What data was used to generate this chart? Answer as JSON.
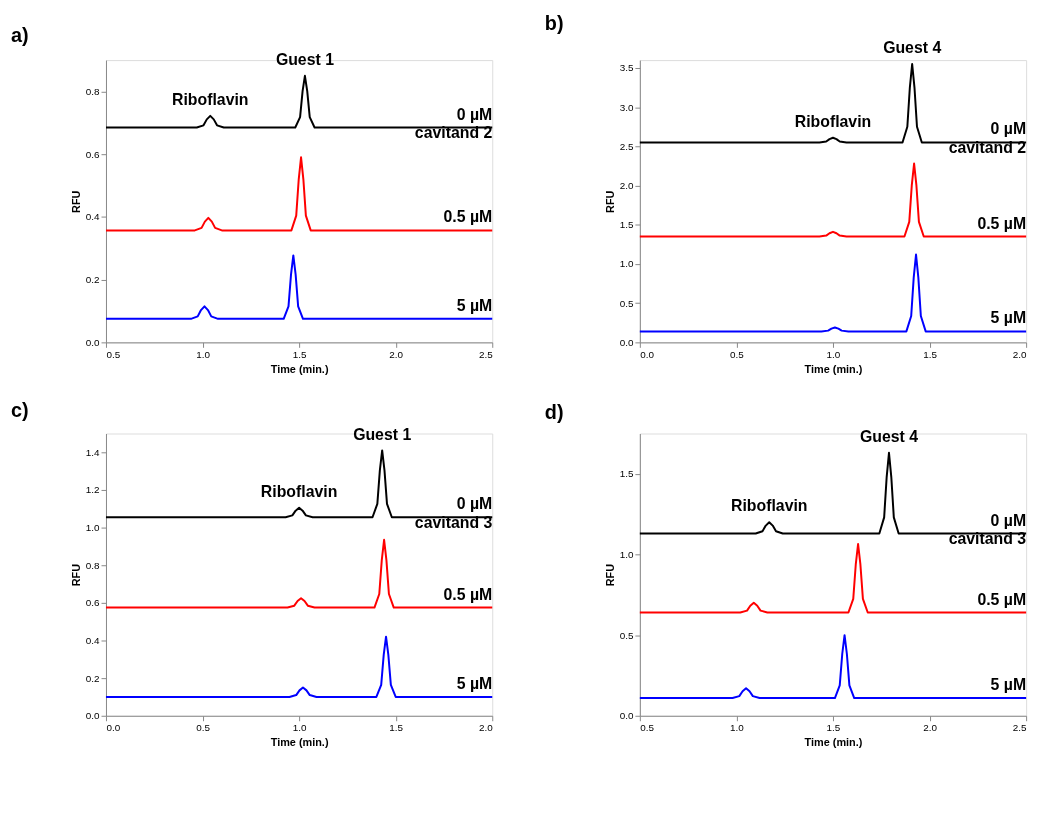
{
  "chart_data": [
    {
      "type": "line",
      "title": "a)",
      "xlabel": "Time (min.)",
      "ylabel": "RFU",
      "xlim": [
        0.5,
        2.5
      ],
      "ylim": [
        0,
        0.9
      ],
      "xticks": [
        0.5,
        {
          "value": 1,
          "label": "1.0"
        },
        1.5,
        {
          "value": 2,
          "label": "2.0"
        },
        2.5
      ],
      "yticks": [
        {
          "value": 0,
          "label": "0.0"
        },
        0.2,
        0.4,
        0.6,
        0.8
      ],
      "annotations": [
        {
          "text": "Guest 1",
          "x": 1.53,
          "y": 0.85
        },
        {
          "text": "Riboflavin",
          "x": 1.04,
          "y": 0.722
        }
      ],
      "series": [
        {
          "name": "0 µM cavitand 2",
          "color": "#000000",
          "x": [
            0.5,
            0.97,
            1.005,
            1.022,
            1.04,
            1.058,
            1.075,
            1.11,
            1.48,
            1.505,
            1.518,
            1.53,
            1.542,
            1.555,
            1.58,
            2.5
          ],
          "values": [
            0.685,
            0.685,
            0.692,
            0.711,
            0.722,
            0.711,
            0.692,
            0.685,
            0.685,
            0.718,
            0.801,
            0.85,
            0.801,
            0.718,
            0.685,
            0.685
          ]
        },
        {
          "name": "0.5 µM",
          "color": "#ff0000",
          "x": [
            0.5,
            0.96,
            0.995,
            1.012,
            1.03,
            1.048,
            1.065,
            1.1,
            1.46,
            1.485,
            1.498,
            1.51,
            1.522,
            1.535,
            1.56,
            2.5
          ],
          "values": [
            0.357,
            0.357,
            0.365,
            0.385,
            0.397,
            0.385,
            0.365,
            0.357,
            0.357,
            0.404,
            0.52,
            0.59,
            0.52,
            0.404,
            0.357,
            0.357
          ]
        },
        {
          "name": "5 µM",
          "color": "#0000ff",
          "x": [
            0.5,
            0.94,
            0.975,
            0.992,
            1.01,
            1.028,
            1.045,
            1.08,
            1.42,
            1.445,
            1.458,
            1.47,
            1.482,
            1.495,
            1.52,
            2.5
          ],
          "values": [
            0.075,
            0.075,
            0.083,
            0.103,
            0.115,
            0.103,
            0.083,
            0.075,
            0.075,
            0.115,
            0.216,
            0.277,
            0.216,
            0.115,
            0.075,
            0.075
          ]
        }
      ]
    },
    {
      "type": "line",
      "title": "b)",
      "xlabel": "Time (min.)",
      "ylabel": "RFU",
      "xlim": [
        0,
        2
      ],
      "ylim": [
        0,
        3.6
      ],
      "xticks": [
        {
          "value": 0,
          "label": "0.0"
        },
        0.5,
        {
          "value": 1,
          "label": "1.0"
        },
        1.5,
        {
          "value": 2,
          "label": "2.0"
        }
      ],
      "yticks": [
        {
          "value": 0,
          "label": "0.0"
        },
        0.5,
        {
          "value": 1,
          "label": "1.0"
        },
        1.5,
        {
          "value": 2,
          "label": "2.0"
        },
        2.5,
        {
          "value": 3,
          "label": "3.0"
        },
        3.5
      ],
      "annotations": [
        {
          "text": "Guest 4",
          "x": 1.41,
          "y": 3.55
        },
        {
          "text": "Riboflavin",
          "x": 1.0,
          "y": 2.61
        }
      ],
      "series": [
        {
          "name": "0 µM cavitand 2",
          "color": "#000000",
          "x": [
            0,
            0.93,
            0.965,
            0.982,
            1.0,
            1.018,
            1.035,
            1.07,
            1.36,
            1.385,
            1.398,
            1.41,
            1.422,
            1.435,
            1.46,
            2.0
          ],
          "values": [
            2.55,
            2.55,
            2.562,
            2.592,
            2.61,
            2.592,
            2.562,
            2.55,
            2.55,
            2.75,
            3.25,
            3.55,
            3.25,
            2.75,
            2.55,
            2.55
          ]
        },
        {
          "name": "0.5 µM",
          "color": "#ff0000",
          "x": [
            0,
            0.93,
            0.965,
            0.982,
            1.0,
            1.018,
            1.035,
            1.07,
            1.37,
            1.395,
            1.408,
            1.42,
            1.432,
            1.445,
            1.47,
            2.0
          ],
          "values": [
            1.35,
            1.35,
            1.362,
            1.392,
            1.41,
            1.392,
            1.362,
            1.35,
            1.35,
            1.536,
            2.001,
            2.28,
            2.001,
            1.536,
            1.35,
            1.35
          ]
        },
        {
          "name": "5 µM",
          "color": "#0000ff",
          "x": [
            0,
            0.94,
            0.975,
            0.992,
            1.01,
            1.028,
            1.045,
            1.08,
            1.38,
            1.405,
            1.418,
            1.43,
            1.442,
            1.455,
            1.48,
            2.0
          ],
          "values": [
            0.14,
            0.14,
            0.15,
            0.175,
            0.19,
            0.175,
            0.15,
            0.14,
            0.14,
            0.336,
            0.826,
            1.12,
            0.826,
            0.336,
            0.14,
            0.14
          ]
        }
      ]
    },
    {
      "type": "line",
      "title": "c)",
      "xlabel": "Time (min.)",
      "ylabel": "RFU",
      "xlim": [
        0,
        2
      ],
      "ylim": [
        0,
        1.5
      ],
      "xticks": [
        {
          "value": 0,
          "label": "0.0"
        },
        0.5,
        {
          "value": 1,
          "label": "1.0"
        },
        1.5,
        {
          "value": 2,
          "label": "2.0"
        }
      ],
      "yticks": [
        {
          "value": 0,
          "label": "0.0"
        },
        0.2,
        0.4,
        0.6,
        0.8,
        {
          "value": 1,
          "label": "1.0"
        },
        1.2,
        1.4
      ],
      "annotations": [
        {
          "text": "Guest 1",
          "x": 1.43,
          "y": 1.41
        },
        {
          "text": "Riboflavin",
          "x": 1.0,
          "y": 1.105
        }
      ],
      "series": [
        {
          "name": "0 µM cavitand 3",
          "color": "#000000",
          "x": [
            0,
            0.93,
            0.965,
            0.982,
            1.0,
            1.018,
            1.035,
            1.07,
            1.38,
            1.405,
            1.418,
            1.43,
            1.442,
            1.455,
            1.48,
            2.0
          ],
          "values": [
            1.055,
            1.055,
            1.065,
            1.09,
            1.105,
            1.09,
            1.065,
            1.055,
            1.055,
            1.126,
            1.304,
            1.41,
            1.304,
            1.126,
            1.055,
            1.055
          ]
        },
        {
          "name": "0.5 µM",
          "color": "#ff0000",
          "x": [
            0,
            0.94,
            0.975,
            0.992,
            1.01,
            1.028,
            1.045,
            1.08,
            1.39,
            1.415,
            1.428,
            1.44,
            1.452,
            1.465,
            1.49,
            2.0
          ],
          "values": [
            0.575,
            0.575,
            0.585,
            0.61,
            0.625,
            0.61,
            0.585,
            0.575,
            0.575,
            0.647,
            0.827,
            0.935,
            0.827,
            0.647,
            0.575,
            0.575
          ]
        },
        {
          "name": "5 µM",
          "color": "#0000ff",
          "x": [
            0,
            0.95,
            0.985,
            1.002,
            1.02,
            1.038,
            1.055,
            1.09,
            1.4,
            1.425,
            1.438,
            1.45,
            1.462,
            1.475,
            1.5,
            2.0
          ],
          "values": [
            0.1,
            0.1,
            0.11,
            0.135,
            0.15,
            0.135,
            0.11,
            0.1,
            0.1,
            0.164,
            0.324,
            0.42,
            0.324,
            0.164,
            0.1,
            0.1
          ]
        }
      ]
    },
    {
      "type": "line",
      "title": "d)",
      "xlabel": "Time (min.)",
      "ylabel": "RFU",
      "xlim": [
        0.5,
        2.5
      ],
      "ylim": [
        0,
        1.75
      ],
      "xticks": [
        0.5,
        {
          "value": 1,
          "label": "1.0"
        },
        1.5,
        {
          "value": 2,
          "label": "2.0"
        },
        2.5
      ],
      "yticks": [
        {
          "value": 0,
          "label": "0.0"
        },
        0.5,
        {
          "value": 1,
          "label": "1.0"
        },
        1.5
      ],
      "annotations": [
        {
          "text": "Guest 4",
          "x": 1.79,
          "y": 1.63
        },
        {
          "text": "Riboflavin",
          "x": 1.17,
          "y": 1.2
        }
      ],
      "series": [
        {
          "name": "0 µM cavitand 3",
          "color": "#000000",
          "x": [
            0.5,
            1.1,
            1.135,
            1.152,
            1.17,
            1.188,
            1.205,
            1.24,
            1.74,
            1.765,
            1.778,
            1.79,
            1.802,
            1.815,
            1.84,
            2.5
          ],
          "values": [
            1.13,
            1.13,
            1.144,
            1.179,
            1.2,
            1.179,
            1.144,
            1.13,
            1.13,
            1.23,
            1.48,
            1.63,
            1.48,
            1.23,
            1.13,
            1.13
          ]
        },
        {
          "name": "0.5 µM",
          "color": "#ff0000",
          "x": [
            0.5,
            1.02,
            1.055,
            1.072,
            1.09,
            1.108,
            1.125,
            1.16,
            1.58,
            1.605,
            1.618,
            1.63,
            1.642,
            1.655,
            1.68,
            2.5
          ],
          "values": [
            0.64,
            0.64,
            0.652,
            0.682,
            0.7,
            0.682,
            0.652,
            0.64,
            0.64,
            0.725,
            0.938,
            1.065,
            0.938,
            0.725,
            0.64,
            0.64
          ]
        },
        {
          "name": "5 µM",
          "color": "#0000ff",
          "x": [
            0.5,
            0.98,
            1.015,
            1.032,
            1.05,
            1.068,
            1.085,
            1.12,
            1.51,
            1.535,
            1.548,
            1.56,
            1.572,
            1.585,
            1.61,
            2.5
          ],
          "values": [
            0.11,
            0.11,
            0.122,
            0.152,
            0.17,
            0.152,
            0.122,
            0.11,
            0.11,
            0.188,
            0.383,
            0.5,
            0.383,
            0.188,
            0.11,
            0.11
          ]
        }
      ]
    }
  ]
}
